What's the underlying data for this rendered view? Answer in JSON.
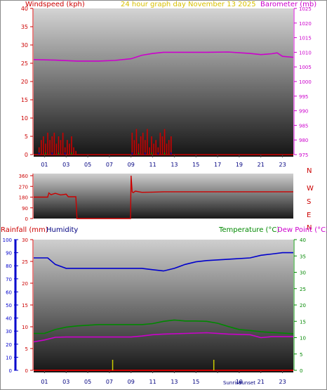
{
  "header": {
    "left_label": "Windspeed (kph)",
    "center_label": "24 hour graph day   November 13 2025",
    "right_label": "Barometer (mb)"
  },
  "bottom_header": {
    "rain_label": "Rainfall (mm)",
    "humidity_label": "Humidity",
    "temp_label": "Temperature (°C)",
    "dew_label": "Dew Point (°C)"
  },
  "direction_labels": [
    "N",
    "W",
    "S",
    "E",
    "N"
  ],
  "annotations": {
    "sunrise": "Sunrise",
    "sunset": "Sunset"
  },
  "colors": {
    "wind": "#cc0000",
    "gust": "#00a000",
    "wind_alt": "#0000cc",
    "barometer": "#cc00cc",
    "direction": "#cc0000",
    "rain": "#cc0000",
    "humidity": "#0000cc",
    "temperature": "#008800",
    "dewpoint": "#cc00cc",
    "sun": "#cccc00",
    "axis_text_dark": "#000080"
  },
  "chart_data": [
    {
      "type": "area",
      "title": "24 hour graph day   November 13 2025",
      "ylabel_left": "Windspeed (kph)",
      "ylabel_right": "Barometer (mb)",
      "x_ticks": [
        "01",
        "03",
        "05",
        "07",
        "09",
        "11",
        "13",
        "15",
        "17",
        "19",
        "21",
        "23"
      ],
      "ylim_left": [
        0,
        40
      ],
      "yticks_left": [
        0,
        5,
        10,
        15,
        20,
        25,
        30,
        35,
        40
      ],
      "ylim_right": [
        975,
        1025
      ],
      "yticks_right": [
        975,
        980,
        985,
        990,
        995,
        1000,
        1005,
        1010,
        1015,
        1020,
        1025
      ],
      "series": [
        {
          "name": "Windspeed (kph)",
          "hours": [
            0.5,
            0.7,
            0.9,
            1.1,
            1.3,
            1.5,
            1.7,
            1.9,
            2.1,
            2.3,
            2.5,
            2.7,
            2.9,
            3.1,
            3.3,
            3.5,
            3.7,
            3.9,
            9.1,
            9.3,
            9.5,
            9.7,
            9.9,
            10.1,
            10.3,
            10.5,
            10.7,
            10.9,
            11.1,
            11.3,
            11.5,
            11.7,
            11.9,
            12.1,
            12.3,
            12.5,
            12.7
          ],
          "values": [
            2,
            4,
            5,
            3,
            6,
            4,
            5,
            6,
            3,
            5,
            4,
            6,
            2,
            4,
            3,
            5,
            2,
            1,
            6,
            4,
            7,
            3,
            5,
            6,
            4,
            7,
            2,
            5,
            3,
            4,
            2,
            6,
            5,
            7,
            3,
            4,
            5
          ]
        },
        {
          "name": "Barometer (mb)",
          "hours": [
            0,
            2,
            4,
            6,
            7.5,
            9,
            10,
            11,
            12,
            14,
            16,
            18,
            20,
            21,
            22,
            22.5,
            23,
            24
          ],
          "values": [
            1007.5,
            1007.3,
            1007,
            1007,
            1007.2,
            1007.8,
            1009,
            1009.6,
            1010,
            1010,
            1010,
            1010.1,
            1009.6,
            1009.2,
            1009.5,
            1009.8,
            1008.6,
            1008.3
          ]
        }
      ]
    },
    {
      "type": "line",
      "ylim": [
        0,
        360
      ],
      "yticks": [
        0,
        90,
        180,
        270,
        360
      ],
      "series": [
        {
          "name": "Wind direction",
          "hours": [
            0,
            1.3,
            1.4,
            1.6,
            2.0,
            2.5,
            3.0,
            3.2,
            3.9,
            4.0,
            8.95,
            9.0,
            9.1,
            9.2,
            9.4,
            10,
            11,
            12,
            13,
            14,
            24
          ],
          "values": [
            180,
            180,
            215,
            200,
            212,
            198,
            205,
            183,
            183,
            0,
            0,
            360,
            225,
            218,
            230,
            220,
            222,
            225,
            225,
            225,
            225
          ]
        }
      ]
    },
    {
      "type": "line",
      "x_ticks": [
        "01",
        "03",
        "05",
        "07",
        "09",
        "11",
        "13",
        "15",
        "17",
        "19",
        "21",
        "23"
      ],
      "ylim_rain": [
        0,
        30
      ],
      "yticks_rain": [
        0,
        5,
        10,
        15,
        20,
        25,
        30
      ],
      "ylim_humidity": [
        0,
        100
      ],
      "yticks_humidity": [
        0,
        10,
        20,
        30,
        40,
        50,
        60,
        70,
        80,
        90,
        100
      ],
      "ylim_temp": [
        0,
        40
      ],
      "yticks_temp": [
        0,
        5,
        10,
        15,
        20,
        25,
        30,
        35,
        40
      ],
      "series": [
        {
          "name": "Rainfall (mm)",
          "hours": [
            0,
            24
          ],
          "values": [
            0,
            0
          ]
        },
        {
          "name": "Humidity",
          "hours": [
            0,
            1.3,
            2,
            3,
            4,
            6,
            8,
            9,
            10,
            11,
            12,
            13,
            14,
            15,
            16,
            18,
            20,
            21,
            22,
            23,
            24
          ],
          "values": [
            86,
            86,
            81,
            78,
            78,
            78,
            78,
            78,
            78,
            77,
            76,
            78,
            81,
            83,
            84,
            85,
            86,
            88,
            89,
            90,
            90
          ]
        },
        {
          "name": "Temperature (°C)",
          "hours": [
            0,
            1,
            2,
            3,
            4,
            6,
            8,
            10,
            11,
            12,
            13,
            14,
            15,
            16,
            17,
            18,
            19,
            20,
            21,
            22,
            23,
            24
          ],
          "values": [
            11.3,
            11.3,
            12.5,
            13.2,
            13.6,
            14,
            14,
            14,
            14.3,
            15,
            15.4,
            15.1,
            15.1,
            15,
            14.4,
            13.4,
            12.5,
            12.2,
            11.8,
            11.6,
            11.4,
            11.2
          ]
        },
        {
          "name": "Dew Point (°C)",
          "hours": [
            0,
            1,
            2,
            3,
            6,
            9,
            10,
            11,
            12,
            14,
            16,
            18,
            20,
            21,
            22,
            23,
            24
          ],
          "values": [
            8.7,
            9.3,
            10.1,
            10.2,
            10.2,
            10.2,
            10.5,
            10.9,
            11.1,
            11.3,
            11.5,
            11.1,
            10.9,
            10,
            10.3,
            10.3,
            10.3
          ]
        }
      ],
      "sun_events": {
        "sunrise_hour": 7.3,
        "sunset_hour": 16.65
      }
    }
  ]
}
